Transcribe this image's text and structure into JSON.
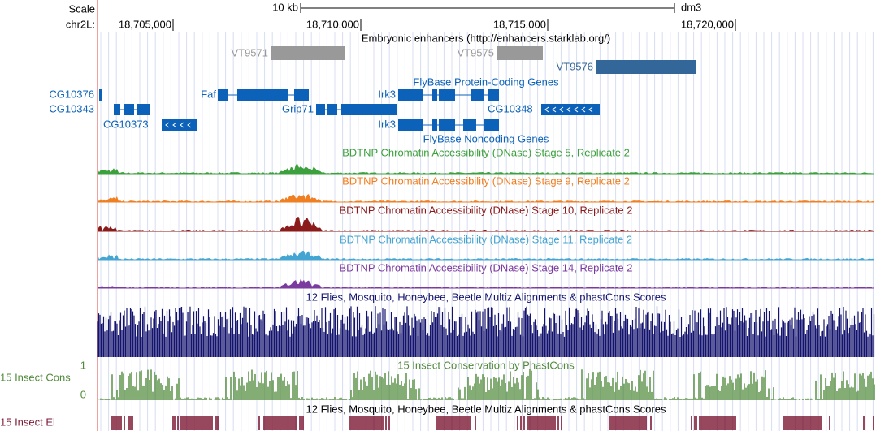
{
  "ruler": {
    "scale": "Scale",
    "span": "10 kb",
    "assembly": "dm3",
    "chrom": "chr2L:",
    "positions": [
      "18,705,000",
      "18,710,000",
      "18,715,000",
      "18,720,000"
    ]
  },
  "enhancers": {
    "title": "Embryonic enhancers (http://enhancers.starklab.org/)",
    "items": [
      "VT9571",
      "VT9575",
      "VT9576"
    ]
  },
  "genes": {
    "coding_title": "FlyBase Protein-Coding Genes",
    "noncoding_title": "FlyBase Noncoding Genes",
    "labels": [
      "CG10376",
      "CG10343",
      "Faf",
      "Grip71",
      "Irk3",
      "CG10348",
      "CG10373",
      "Irk3"
    ]
  },
  "signal_tracks": [
    "BDTNP Chromatin Accessibility (DNase) Stage 5, Replicate 2",
    "BDTNP Chromatin Accessibility (DNase) Stage 9, Replicate 2",
    "BDTNP Chromatin Accessibility (DNase) Stage 10, Replicate 2",
    "BDTNP Chromatin Accessibility (DNase) Stage 11, Replicate 2",
    "BDTNP Chromatin Accessibility (DNase) Stage 14, Replicate 2"
  ],
  "conservation": {
    "title": "12 Flies, Mosquito, Honeybee, Beetle Multiz Alignments & phastCons Scores",
    "phast_title": "15 Insect Conservation by PhastCons",
    "phast_side": "15 Insect Cons",
    "phast_max": 1,
    "phast_min": 0,
    "elements_title": "12 Flies, Mosquito, Honeybee, Beetle Multiz Alignments & phastCons Scores",
    "elements_side": "15 Insect El"
  }
}
